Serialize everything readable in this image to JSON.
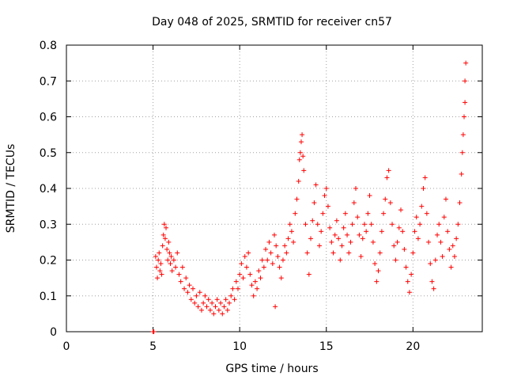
{
  "chart_data": {
    "type": "scatter",
    "title": "Day 048 of 2025, SRMTID for receiver cn57",
    "xlabel": "GPS time / hours",
    "ylabel": "SRMTID / TECUs",
    "xlim": [
      0,
      24
    ],
    "ylim": [
      0,
      0.8
    ],
    "x_ticks": [
      0,
      5,
      10,
      15,
      20
    ],
    "x_tick_labels": [
      "0",
      "5",
      "10",
      "15",
      "20"
    ],
    "y_ticks": [
      0,
      0.1,
      0.2,
      0.3,
      0.4,
      0.5,
      0.6,
      0.7,
      0.8
    ],
    "y_tick_labels": [
      "0",
      "0.1",
      "0.2",
      "0.3",
      "0.4",
      "0.5",
      "0.6",
      "0.7",
      "0.8"
    ],
    "grid": true,
    "marker": "plus",
    "color": "#ff0000",
    "series": [
      {
        "name": "cn57",
        "points": [
          [
            5.0,
            0.0
          ],
          [
            5.05,
            0.0
          ],
          [
            5.15,
            0.21
          ],
          [
            5.2,
            0.18
          ],
          [
            5.25,
            0.15
          ],
          [
            5.3,
            0.2
          ],
          [
            5.35,
            0.22
          ],
          [
            5.4,
            0.17
          ],
          [
            5.45,
            0.19
          ],
          [
            5.5,
            0.16
          ],
          [
            5.55,
            0.24
          ],
          [
            5.6,
            0.27
          ],
          [
            5.65,
            0.3
          ],
          [
            5.7,
            0.26
          ],
          [
            5.75,
            0.29
          ],
          [
            5.8,
            0.23
          ],
          [
            5.85,
            0.2
          ],
          [
            5.9,
            0.25
          ],
          [
            5.95,
            0.22
          ],
          [
            6.0,
            0.19
          ],
          [
            6.05,
            0.21
          ],
          [
            6.1,
            0.17
          ],
          [
            6.2,
            0.2
          ],
          [
            6.3,
            0.18
          ],
          [
            6.4,
            0.22
          ],
          [
            6.5,
            0.16
          ],
          [
            6.6,
            0.14
          ],
          [
            6.7,
            0.18
          ],
          [
            6.8,
            0.12
          ],
          [
            6.9,
            0.15
          ],
          [
            7.0,
            0.11
          ],
          [
            7.1,
            0.13
          ],
          [
            7.2,
            0.09
          ],
          [
            7.3,
            0.12
          ],
          [
            7.4,
            0.08
          ],
          [
            7.5,
            0.1
          ],
          [
            7.6,
            0.07
          ],
          [
            7.7,
            0.11
          ],
          [
            7.8,
            0.06
          ],
          [
            7.9,
            0.08
          ],
          [
            8.0,
            0.1
          ],
          [
            8.1,
            0.07
          ],
          [
            8.2,
            0.09
          ],
          [
            8.3,
            0.06
          ],
          [
            8.4,
            0.08
          ],
          [
            8.5,
            0.05
          ],
          [
            8.6,
            0.07
          ],
          [
            8.7,
            0.09
          ],
          [
            8.8,
            0.06
          ],
          [
            8.9,
            0.08
          ],
          [
            9.0,
            0.05
          ],
          [
            9.1,
            0.07
          ],
          [
            9.2,
            0.09
          ],
          [
            9.3,
            0.06
          ],
          [
            9.4,
            0.08
          ],
          [
            9.5,
            0.1
          ],
          [
            9.6,
            0.12
          ],
          [
            9.7,
            0.09
          ],
          [
            9.8,
            0.14
          ],
          [
            9.9,
            0.12
          ],
          [
            10.0,
            0.16
          ],
          [
            10.1,
            0.19
          ],
          [
            10.2,
            0.15
          ],
          [
            10.3,
            0.21
          ],
          [
            10.4,
            0.18
          ],
          [
            10.5,
            0.22
          ],
          [
            10.6,
            0.16
          ],
          [
            10.7,
            0.13
          ],
          [
            10.8,
            0.1
          ],
          [
            10.9,
            0.14
          ],
          [
            11.0,
            0.12
          ],
          [
            11.1,
            0.17
          ],
          [
            11.2,
            0.15
          ],
          [
            11.3,
            0.2
          ],
          [
            11.4,
            0.18
          ],
          [
            11.5,
            0.23
          ],
          [
            11.6,
            0.2
          ],
          [
            11.7,
            0.25
          ],
          [
            11.8,
            0.22
          ],
          [
            11.9,
            0.19
          ],
          [
            12.0,
            0.27
          ],
          [
            12.05,
            0.07
          ],
          [
            12.1,
            0.24
          ],
          [
            12.2,
            0.21
          ],
          [
            12.3,
            0.18
          ],
          [
            12.4,
            0.15
          ],
          [
            12.5,
            0.2
          ],
          [
            12.6,
            0.24
          ],
          [
            12.7,
            0.22
          ],
          [
            12.8,
            0.26
          ],
          [
            12.9,
            0.3
          ],
          [
            13.0,
            0.28
          ],
          [
            13.1,
            0.25
          ],
          [
            13.2,
            0.33
          ],
          [
            13.3,
            0.37
          ],
          [
            13.4,
            0.42
          ],
          [
            13.45,
            0.48
          ],
          [
            13.5,
            0.5
          ],
          [
            13.55,
            0.53
          ],
          [
            13.6,
            0.55
          ],
          [
            13.65,
            0.49
          ],
          [
            13.7,
            0.45
          ],
          [
            13.8,
            0.3
          ],
          [
            13.9,
            0.22
          ],
          [
            14.0,
            0.16
          ],
          [
            14.1,
            0.26
          ],
          [
            14.2,
            0.31
          ],
          [
            14.3,
            0.36
          ],
          [
            14.4,
            0.41
          ],
          [
            14.5,
            0.3
          ],
          [
            14.6,
            0.24
          ],
          [
            14.7,
            0.28
          ],
          [
            14.8,
            0.33
          ],
          [
            14.9,
            0.38
          ],
          [
            15.0,
            0.4
          ],
          [
            15.1,
            0.35
          ],
          [
            15.2,
            0.29
          ],
          [
            15.3,
            0.25
          ],
          [
            15.4,
            0.22
          ],
          [
            15.5,
            0.27
          ],
          [
            15.6,
            0.31
          ],
          [
            15.7,
            0.26
          ],
          [
            15.8,
            0.2
          ],
          [
            15.9,
            0.24
          ],
          [
            16.0,
            0.29
          ],
          [
            16.1,
            0.33
          ],
          [
            16.2,
            0.27
          ],
          [
            16.3,
            0.22
          ],
          [
            16.4,
            0.25
          ],
          [
            16.5,
            0.3
          ],
          [
            16.6,
            0.36
          ],
          [
            16.7,
            0.4
          ],
          [
            16.8,
            0.32
          ],
          [
            16.9,
            0.27
          ],
          [
            17.0,
            0.21
          ],
          [
            17.1,
            0.26
          ],
          [
            17.2,
            0.3
          ],
          [
            17.3,
            0.28
          ],
          [
            17.4,
            0.33
          ],
          [
            17.5,
            0.38
          ],
          [
            17.6,
            0.3
          ],
          [
            17.7,
            0.25
          ],
          [
            17.8,
            0.19
          ],
          [
            17.9,
            0.14
          ],
          [
            18.0,
            0.17
          ],
          [
            18.1,
            0.22
          ],
          [
            18.2,
            0.28
          ],
          [
            18.3,
            0.33
          ],
          [
            18.4,
            0.37
          ],
          [
            18.5,
            0.43
          ],
          [
            18.6,
            0.45
          ],
          [
            18.7,
            0.36
          ],
          [
            18.8,
            0.3
          ],
          [
            18.9,
            0.24
          ],
          [
            19.0,
            0.2
          ],
          [
            19.1,
            0.25
          ],
          [
            19.2,
            0.29
          ],
          [
            19.3,
            0.34
          ],
          [
            19.4,
            0.28
          ],
          [
            19.5,
            0.23
          ],
          [
            19.6,
            0.18
          ],
          [
            19.7,
            0.14
          ],
          [
            19.8,
            0.11
          ],
          [
            19.9,
            0.16
          ],
          [
            20.0,
            0.22
          ],
          [
            20.1,
            0.28
          ],
          [
            20.2,
            0.32
          ],
          [
            20.3,
            0.26
          ],
          [
            20.4,
            0.3
          ],
          [
            20.5,
            0.35
          ],
          [
            20.6,
            0.4
          ],
          [
            20.7,
            0.43
          ],
          [
            20.8,
            0.33
          ],
          [
            20.9,
            0.25
          ],
          [
            21.0,
            0.19
          ],
          [
            21.1,
            0.14
          ],
          [
            21.2,
            0.12
          ],
          [
            21.3,
            0.2
          ],
          [
            21.4,
            0.27
          ],
          [
            21.5,
            0.3
          ],
          [
            21.6,
            0.25
          ],
          [
            21.7,
            0.21
          ],
          [
            21.8,
            0.32
          ],
          [
            21.9,
            0.37
          ],
          [
            22.0,
            0.28
          ],
          [
            22.1,
            0.23
          ],
          [
            22.2,
            0.18
          ],
          [
            22.3,
            0.24
          ],
          [
            22.4,
            0.21
          ],
          [
            22.5,
            0.26
          ],
          [
            22.6,
            0.3
          ],
          [
            22.7,
            0.36
          ],
          [
            22.8,
            0.44
          ],
          [
            22.85,
            0.5
          ],
          [
            22.9,
            0.55
          ],
          [
            22.95,
            0.6
          ],
          [
            23.0,
            0.64
          ],
          [
            23.0,
            0.7
          ],
          [
            23.05,
            0.75
          ]
        ]
      }
    ]
  }
}
